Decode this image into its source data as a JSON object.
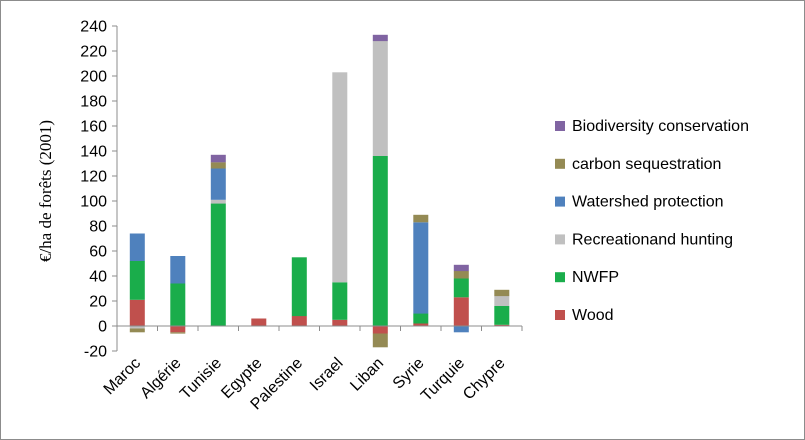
{
  "chart_data": {
    "type": "bar",
    "stacked": true,
    "title": "",
    "xlabel": "",
    "ylabel": "€/ha de forêts (2001)",
    "ylim": [
      -20,
      240
    ],
    "ytick_step": 20,
    "grid": false,
    "legend_position": "right",
    "categories": [
      "Maroc",
      "Algérie",
      "Tunisie",
      "Egypte",
      "Palestine",
      "Israel",
      "Liban",
      "Syrie",
      "Turquie",
      "Chypre"
    ],
    "series": [
      {
        "name": "Wood",
        "color": "#c0504d",
        "values": [
          21,
          -5,
          0,
          6,
          8,
          5,
          -6,
          2,
          23,
          1
        ]
      },
      {
        "name": "NWFP",
        "color": "#1aad4b",
        "values": [
          31,
          34,
          98,
          0,
          47,
          30,
          136,
          8,
          15,
          15
        ]
      },
      {
        "name": "Recreationand hunting",
        "color": "#c0c0c0",
        "values": [
          -2,
          0,
          3,
          0,
          0,
          168,
          92,
          0,
          0,
          8
        ]
      },
      {
        "name": "Watershed protection",
        "color": "#4f81bd",
        "values": [
          22,
          22,
          25,
          0,
          0,
          0,
          0,
          73,
          -5,
          0
        ]
      },
      {
        "name": "carbon sequestration",
        "color": "#948a54",
        "values": [
          -3,
          -1,
          5,
          0,
          0,
          0,
          -11,
          6,
          6,
          5
        ]
      },
      {
        "name": "Biodiversity conservation",
        "color": "#8064a2",
        "values": [
          0,
          0,
          6,
          0,
          0,
          0,
          5,
          0,
          5,
          0
        ]
      }
    ]
  }
}
